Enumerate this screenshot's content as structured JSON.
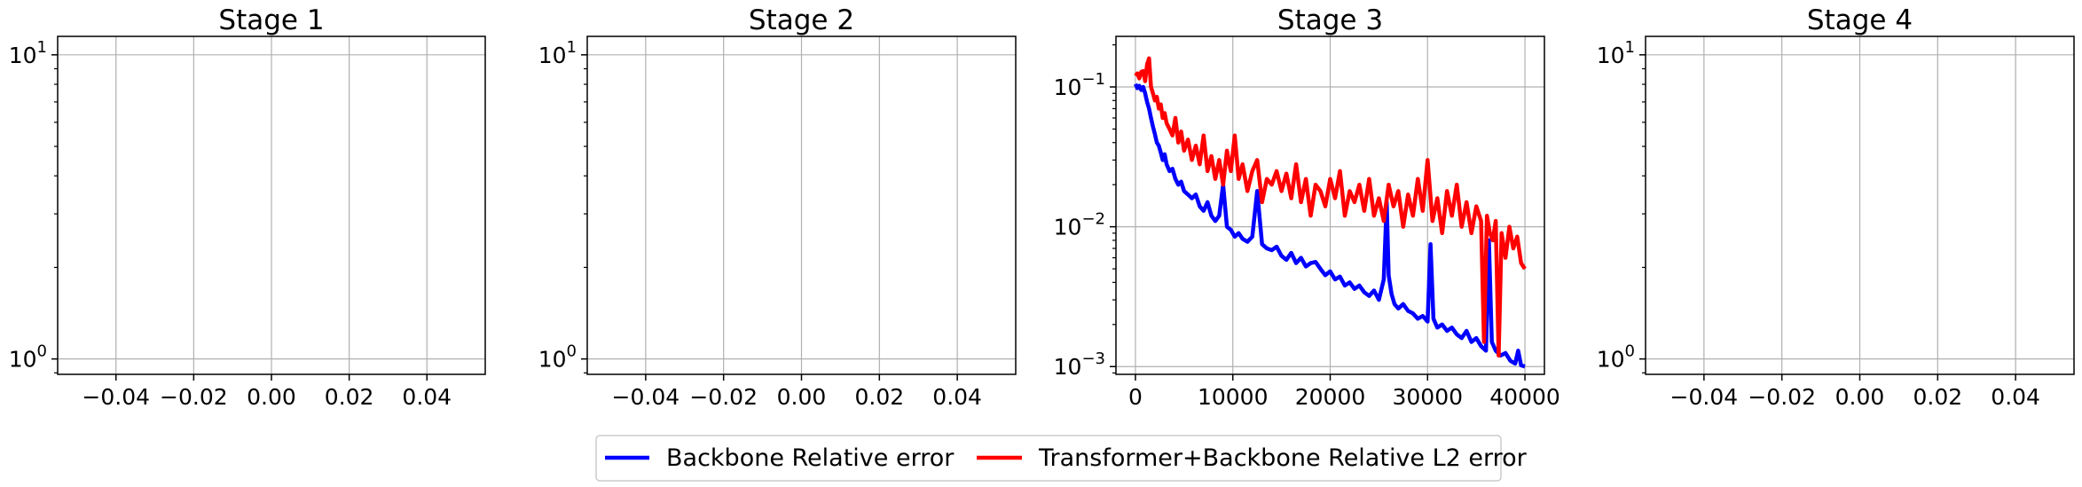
{
  "chart_data": [
    {
      "type": "line",
      "title": "Stage 1",
      "xlim": [
        -0.055,
        0.055
      ],
      "x_ticks": [
        "−0.04",
        "−0.02",
        "0.00",
        "0.02",
        "0.04"
      ],
      "x_tick_values": [
        -0.04,
        -0.02,
        0.0,
        0.02,
        0.04
      ],
      "yscale": "log",
      "ylim": [
        0.89,
        11.5
      ],
      "y_ticks": [
        {
          "base": "10",
          "exp": "0",
          "value": 1
        },
        {
          "base": "10",
          "exp": "1",
          "value": 10
        }
      ],
      "grid": true,
      "series": []
    },
    {
      "type": "line",
      "title": "Stage 2",
      "xlim": [
        -0.055,
        0.055
      ],
      "x_ticks": [
        "−0.04",
        "−0.02",
        "0.00",
        "0.02",
        "0.04"
      ],
      "x_tick_values": [
        -0.04,
        -0.02,
        0.0,
        0.02,
        0.04
      ],
      "yscale": "log",
      "ylim": [
        0.89,
        11.5
      ],
      "y_ticks": [
        {
          "base": "10",
          "exp": "0",
          "value": 1
        },
        {
          "base": "10",
          "exp": "1",
          "value": 10
        }
      ],
      "grid": true,
      "series": []
    },
    {
      "type": "line",
      "title": "Stage 3",
      "xlim": [
        -2000,
        42000
      ],
      "x_ticks": [
        "0",
        "10000",
        "20000",
        "30000",
        "40000"
      ],
      "x_tick_values": [
        0,
        10000,
        20000,
        30000,
        40000
      ],
      "yscale": "log",
      "ylim": [
        0.00088,
        0.23
      ],
      "y_ticks": [
        {
          "base": "10",
          "exp": "−3",
          "value": 0.001
        },
        {
          "base": "10",
          "exp": "−2",
          "value": 0.01
        },
        {
          "base": "10",
          "exp": "−1",
          "value": 0.1
        }
      ],
      "grid": true,
      "series": [
        {
          "name": "Backbone Relative error",
          "color": "#0000ff",
          "x": [
            0,
            200,
            400,
            600,
            800,
            1000,
            1200,
            1400,
            1600,
            1800,
            2000,
            2200,
            2400,
            2600,
            2800,
            3000,
            3200,
            3500,
            3800,
            4100,
            4400,
            4700,
            5000,
            5400,
            5800,
            6200,
            6600,
            7000,
            7400,
            7800,
            8200,
            8600,
            9000,
            9400,
            9800,
            10200,
            10600,
            11000,
            11500,
            12000,
            12500,
            13000,
            13500,
            14000,
            14500,
            15000,
            15500,
            16000,
            16500,
            17000,
            17500,
            18000,
            18500,
            19000,
            19500,
            20000,
            20500,
            21000,
            21500,
            22000,
            22500,
            23000,
            23500,
            24000,
            24500,
            25000,
            25500,
            25800,
            26000,
            26300,
            26600,
            27000,
            27500,
            28000,
            28500,
            29000,
            29500,
            30000,
            30300,
            30600,
            31000,
            31500,
            32000,
            32500,
            33000,
            33500,
            34000,
            34500,
            35000,
            35500,
            36000,
            36300,
            36600,
            37000,
            37500,
            38000,
            38500,
            39000,
            39300,
            39600,
            40000
          ],
          "values": [
            0.105,
            0.098,
            0.102,
            0.095,
            0.1,
            0.09,
            0.078,
            0.07,
            0.06,
            0.052,
            0.046,
            0.04,
            0.038,
            0.034,
            0.03,
            0.033,
            0.028,
            0.025,
            0.026,
            0.022,
            0.02,
            0.021,
            0.018,
            0.017,
            0.016,
            0.017,
            0.014,
            0.013,
            0.015,
            0.012,
            0.011,
            0.012,
            0.02,
            0.01,
            0.0095,
            0.0085,
            0.009,
            0.0082,
            0.0078,
            0.0085,
            0.018,
            0.0075,
            0.007,
            0.0068,
            0.0072,
            0.0062,
            0.0058,
            0.0065,
            0.0055,
            0.006,
            0.0052,
            0.0055,
            0.0056,
            0.005,
            0.0045,
            0.0048,
            0.0042,
            0.0044,
            0.0038,
            0.004,
            0.0036,
            0.0038,
            0.0034,
            0.0032,
            0.0035,
            0.003,
            0.0042,
            0.015,
            0.0045,
            0.0033,
            0.0028,
            0.0026,
            0.0028,
            0.0025,
            0.0024,
            0.0022,
            0.0023,
            0.0021,
            0.0075,
            0.0022,
            0.0019,
            0.002,
            0.0018,
            0.0019,
            0.0017,
            0.0016,
            0.0018,
            0.0015,
            0.0016,
            0.0014,
            0.0013,
            0.008,
            0.0015,
            0.0013,
            0.0012,
            0.00125,
            0.0011,
            0.00105,
            0.0013,
            0.00102,
            0.001
          ]
        },
        {
          "name": "Transformer+Backbone Relative L2 error",
          "color": "#ff0000",
          "x": [
            0,
            200,
            400,
            600,
            800,
            1000,
            1200,
            1400,
            1600,
            1800,
            2000,
            2200,
            2400,
            2600,
            2800,
            3000,
            3200,
            3500,
            3800,
            4100,
            4400,
            4700,
            5000,
            5400,
            5800,
            6200,
            6600,
            7000,
            7400,
            7800,
            8200,
            8600,
            9000,
            9400,
            9800,
            10200,
            10600,
            11000,
            11500,
            12000,
            12500,
            13000,
            13500,
            14000,
            14500,
            15000,
            15500,
            16000,
            16500,
            17000,
            17500,
            18000,
            18500,
            19000,
            19500,
            20000,
            20500,
            21000,
            21500,
            22000,
            22500,
            23000,
            23500,
            24000,
            24500,
            25000,
            25500,
            26000,
            26500,
            27000,
            27500,
            28000,
            28500,
            29000,
            29500,
            30000,
            30500,
            31000,
            31500,
            32000,
            32500,
            33000,
            33500,
            34000,
            34500,
            35000,
            35500,
            35800,
            36100,
            36400,
            36700,
            37000,
            37300,
            37600,
            38000,
            38400,
            38800,
            39200,
            39600,
            40000
          ],
          "values": [
            0.12,
            0.125,
            0.115,
            0.128,
            0.13,
            0.11,
            0.145,
            0.16,
            0.1,
            0.09,
            0.08,
            0.085,
            0.07,
            0.075,
            0.06,
            0.065,
            0.055,
            0.05,
            0.045,
            0.06,
            0.04,
            0.048,
            0.035,
            0.042,
            0.03,
            0.038,
            0.028,
            0.045,
            0.025,
            0.032,
            0.022,
            0.03,
            0.02,
            0.035,
            0.025,
            0.045,
            0.022,
            0.028,
            0.018,
            0.025,
            0.03,
            0.015,
            0.022,
            0.02,
            0.025,
            0.018,
            0.024,
            0.016,
            0.028,
            0.015,
            0.022,
            0.012,
            0.02,
            0.018,
            0.014,
            0.022,
            0.016,
            0.025,
            0.012,
            0.018,
            0.015,
            0.02,
            0.013,
            0.022,
            0.012,
            0.016,
            0.011,
            0.02,
            0.014,
            0.018,
            0.01,
            0.017,
            0.012,
            0.022,
            0.013,
            0.03,
            0.011,
            0.016,
            0.009,
            0.018,
            0.012,
            0.02,
            0.01,
            0.015,
            0.009,
            0.014,
            0.011,
            0.0015,
            0.012,
            0.009,
            0.008,
            0.011,
            0.0012,
            0.009,
            0.006,
            0.01,
            0.007,
            0.0085,
            0.0055,
            0.005
          ]
        }
      ]
    },
    {
      "type": "line",
      "title": "Stage 4",
      "xlim": [
        -0.055,
        0.055
      ],
      "x_ticks": [
        "−0.04",
        "−0.02",
        "0.00",
        "0.02",
        "0.04"
      ],
      "x_tick_values": [
        -0.04,
        -0.02,
        0.0,
        0.02,
        0.04
      ],
      "yscale": "log",
      "ylim": [
        0.89,
        11.5
      ],
      "y_ticks": [
        {
          "base": "10",
          "exp": "0",
          "value": 1
        },
        {
          "base": "10",
          "exp": "1",
          "value": 10
        }
      ],
      "grid": true,
      "series": []
    }
  ],
  "legend": {
    "placement": "bottom-center",
    "entries": [
      {
        "label": "Backbone Relative error",
        "color": "#0000ff"
      },
      {
        "label": "Transformer+Backbone Relative L2 error",
        "color": "#ff0000"
      }
    ]
  }
}
